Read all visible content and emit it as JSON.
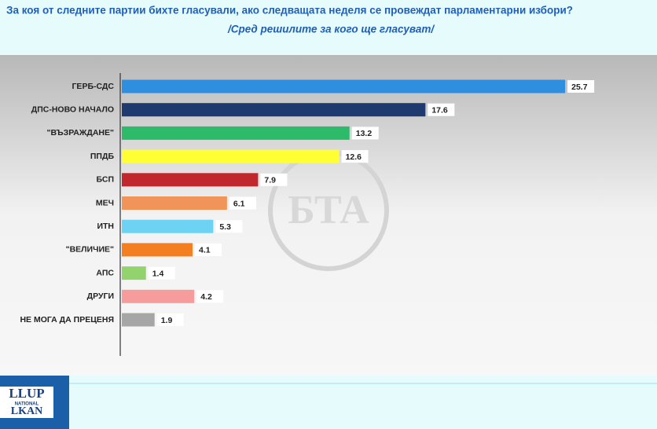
{
  "chart_data": {
    "type": "bar",
    "orientation": "horizontal",
    "title": "За коя от следните партии бихте  гласували,  ако следващата неделя се провеждат парламентарни избори?",
    "subtitle": "/Сред решилите за кого ще гласуват/",
    "categories": [
      "ГЕРБ-СДС",
      "ДПС-НОВО НАЧАЛО",
      "\"ВЪЗРАЖДАНЕ\"",
      "ППДБ",
      "БСП",
      "МЕЧ",
      "ИТН",
      "\"ВЕЛИЧИЕ\"",
      "АПС",
      "ДРУГИ",
      "НЕ МОГА ДА ПРЕЦЕНЯ"
    ],
    "values": [
      25.7,
      17.6,
      13.2,
      12.6,
      7.9,
      6.1,
      5.3,
      4.1,
      1.4,
      4.2,
      1.9
    ],
    "colors": [
      "#2e8fe0",
      "#1f3a6e",
      "#2dbb6a",
      "#ffff33",
      "#c0282d",
      "#f0945a",
      "#6dd3f5",
      "#f47f20",
      "#92d36e",
      "#f79c9c",
      "#a6a6a6"
    ]
  },
  "watermark": "БТА",
  "logo": {
    "line1": "LLUP",
    "line2": "NATIONAL",
    "line3": "LKAN"
  }
}
